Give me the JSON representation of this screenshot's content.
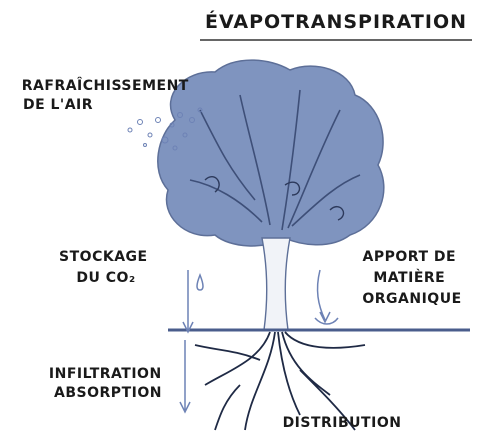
{
  "title": "ÉVAPOTRANSPIRATION",
  "labels": [
    {
      "lines": [
        "RAFRAÎCHISSEMENT",
        "DE L'AIR"
      ]
    },
    {
      "lines": [
        "STOCKAGE",
        "DU CO₂"
      ]
    },
    {
      "lines": [
        "APPORT DE",
        "MATIÈRE",
        "ORGANIQUE"
      ]
    },
    {
      "lines": [
        "INFILTRATION",
        "ABSORPTION"
      ]
    },
    {
      "lines": [
        "DISTRIBUTION"
      ]
    }
  ]
}
